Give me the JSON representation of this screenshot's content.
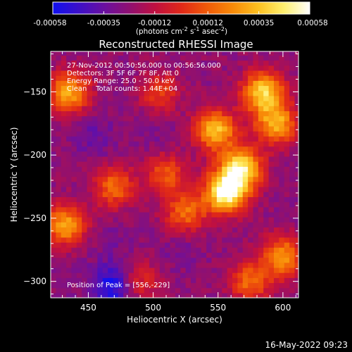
{
  "colorbar": {
    "tick_labels": [
      "-0.00058",
      "-0.00035",
      "-0.00012",
      "0.00012",
      "0.00035",
      "0.00058"
    ],
    "tick_values": [
      -0.00058,
      -0.00035,
      -0.00012,
      0.00012,
      0.00035,
      0.00058
    ],
    "range": [
      -0.00058,
      0.00058
    ],
    "units_prefix": "(photons cm",
    "units_exp1": "-2",
    "units_mid1": " s",
    "units_exp2": "-1",
    "units_mid2": " asec",
    "units_exp3": "-2",
    "units_suffix": ")",
    "stops": [
      "#1010f0",
      "#3c10c8",
      "#6a10a0",
      "#901070",
      "#c01040",
      "#e02818",
      "#f05a08",
      "#f88a08",
      "#fcc020",
      "#fef070",
      "#ffffff"
    ]
  },
  "chart_data": {
    "type": "heatmap",
    "title": "Reconstructed RHESSI Image",
    "xlabel": "Heliocentric X (arcsec)",
    "ylabel": "Heliocentric Y (arcsec)",
    "xlim": [
      421,
      612
    ],
    "ylim": [
      -313,
      -118
    ],
    "xticks": [
      450,
      500,
      550,
      600
    ],
    "xtick_labels": [
      "450",
      "500",
      "550",
      "600"
    ],
    "yticks": [
      -150,
      -200,
      -250,
      -300
    ],
    "ytick_labels": [
      "−150",
      "−200",
      "−250",
      "−300"
    ],
    "value_range": [
      -0.00058,
      0.00058
    ],
    "hot_spots": [
      {
        "x": 556,
        "y": -229,
        "value": 0.00058
      },
      {
        "x": 568,
        "y": -210,
        "value": 0.00045
      },
      {
        "x": 548,
        "y": -180,
        "value": 0.00035
      },
      {
        "x": 585,
        "y": -150,
        "value": 0.0004
      },
      {
        "x": 595,
        "y": -175,
        "value": 0.0003
      },
      {
        "x": 435,
        "y": -150,
        "value": 0.0003
      },
      {
        "x": 432,
        "y": -255,
        "value": 0.00028
      },
      {
        "x": 470,
        "y": -225,
        "value": 0.00015
      },
      {
        "x": 510,
        "y": -215,
        "value": 0.0001
      },
      {
        "x": 525,
        "y": -245,
        "value": 0.00015
      },
      {
        "x": 600,
        "y": -280,
        "value": 0.00025
      },
      {
        "x": 505,
        "y": -150,
        "value": 5e-05
      },
      {
        "x": 490,
        "y": -300,
        "value": 0.0
      },
      {
        "x": 575,
        "y": -300,
        "value": 0.00015
      }
    ],
    "cold_spots": [
      {
        "x": 468,
        "y": -303,
        "value": -0.00058
      },
      {
        "x": 455,
        "y": -185,
        "value": -0.00035
      },
      {
        "x": 520,
        "y": -275,
        "value": -0.0003
      },
      {
        "x": 500,
        "y": -180,
        "value": -0.0003
      },
      {
        "x": 470,
        "y": -270,
        "value": -0.0003
      }
    ],
    "annotations": {
      "time_range": "27-Nov-2012 00:50:56.000 to 00:56:56.000",
      "detectors": "Detectors: 3F 5F 6F 7F 8F, Att 0",
      "energy": "Energy Range: 25.0 - 50.0 keV",
      "clean": "Clean    Total counts: 1.44E+04",
      "peak": "Position of Peak = [556,-229]"
    }
  },
  "footer": {
    "timestamp": "16-May-2022 09:23"
  }
}
